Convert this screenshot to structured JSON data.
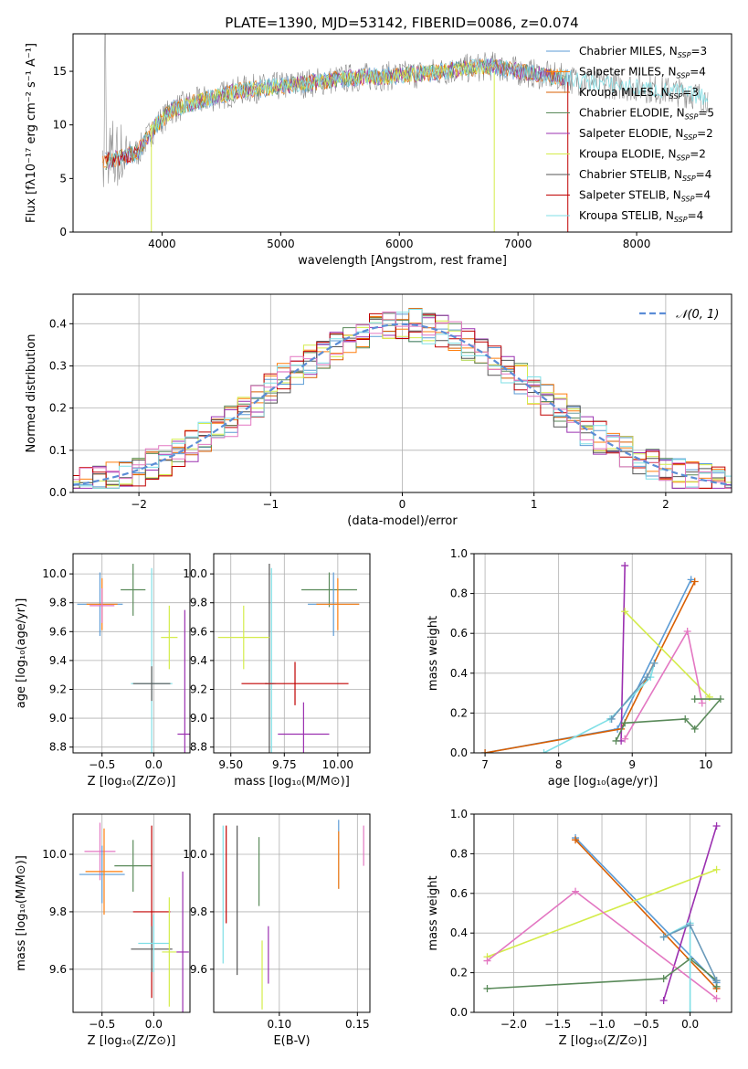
{
  "figure_title": "PLATE=1390, MJD=53142, FIBERID=0086, z=0.074",
  "colors": {
    "Chabrier MILES": "#5b9bd5",
    "Salpeter MILES": "#ff7f0e",
    "Kroupa MILES": "#d95f02",
    "Chabrier ELODIE": "#5a8a5a",
    "Salpeter ELODIE": "#9b30b0",
    "Kroupa ELODIE": "#d4ec4a",
    "Chabrier STELIB": "#555555",
    "Salpeter STELIB": "#c00000",
    "Kroupa STELIB": "#7fdfe6",
    "Extra pink": "#e377c2"
  },
  "chart_data": [
    {
      "id": "spectrum",
      "type": "line",
      "title": "PLATE=1390, MJD=53142, FIBERID=0086, z=0.074",
      "xlabel": "wavelength [Angstrom, rest frame]",
      "ylabel": "Flux [fλ10⁻¹⁷ erg cm⁻² s⁻¹ A⁻¹]",
      "xlim": [
        3250,
        8800
      ],
      "ylim": [
        0,
        18.5
      ],
      "xticks": [
        4000,
        5000,
        6000,
        7000,
        8000
      ],
      "yticks": [
        0,
        5,
        10,
        15
      ],
      "grid": false,
      "legend_position": "right",
      "legend": [
        {
          "label": "Chabrier MILES, N",
          "sub": "SSP",
          "suffix": "=3",
          "color": "#5b9bd5"
        },
        {
          "label": "Salpeter MILES, N",
          "sub": "SSP",
          "suffix": "=4",
          "color": "#ff7f0e"
        },
        {
          "label": "Kroupa MILES, N",
          "sub": "SSP",
          "suffix": "=3",
          "color": "#d95f02"
        },
        {
          "label": "Chabrier ELODIE, N",
          "sub": "SSP",
          "suffix": "=5",
          "color": "#5a8a5a"
        },
        {
          "label": "Salpeter ELODIE, N",
          "sub": "SSP",
          "suffix": "=2",
          "color": "#9b30b0"
        },
        {
          "label": "Kroupa ELODIE, N",
          "sub": "SSP",
          "suffix": "=2",
          "color": "#d4ec4a"
        },
        {
          "label": "Chabrier STELIB, N",
          "sub": "SSP",
          "suffix": "=4",
          "color": "#555555"
        },
        {
          "label": "Salpeter STELIB, N",
          "sub": "SSP",
          "suffix": "=4",
          "color": "#c00000"
        },
        {
          "label": "Kroupa STELIB, N",
          "sub": "SSP",
          "suffix": "=4",
          "color": "#7fdfe6"
        }
      ],
      "continuum_anchors": {
        "x": [
          3500,
          3800,
          3950,
          4100,
          4400,
          4700,
          5000,
          5300,
          5600,
          6000,
          6300,
          6600,
          6800,
          7000,
          7300,
          7600,
          8000,
          8400,
          8600
        ],
        "y": [
          6.5,
          7.5,
          10.0,
          11.5,
          12.5,
          13.3,
          13.6,
          14.0,
          14.4,
          14.6,
          14.9,
          15.3,
          15.5,
          15.0,
          14.5,
          14.0,
          13.5,
          13.0,
          12.5
        ]
      }
    },
    {
      "id": "residuals",
      "type": "histogram",
      "xlabel": "(data-model)/error",
      "ylabel": "Normed distribution",
      "xlim": [
        -2.5,
        2.5
      ],
      "ylim": [
        0,
        0.47
      ],
      "xticks": [
        -2,
        -1,
        0,
        1,
        2
      ],
      "yticks": [
        0.0,
        0.1,
        0.2,
        0.3,
        0.4
      ],
      "grid": true,
      "legend_position": "top-right",
      "reference_label": "𝒩(0, 1)",
      "reference_color": "#5b8dd6",
      "bin_width": 0.1
    },
    {
      "id": "z_age",
      "type": "errorbar",
      "xlabel": "Z [log₁₀(Z/Z⊙)]",
      "ylabel": "age  [log₁₀(age/yr)]",
      "xlim": [
        -0.78,
        0.35
      ],
      "ylim": [
        8.76,
        10.14
      ],
      "xticks": [
        -0.5,
        0.0
      ],
      "yticks": [
        8.8,
        9.0,
        9.2,
        9.4,
        9.6,
        9.8,
        10.0
      ],
      "grid": true,
      "points": [
        {
          "x": -0.52,
          "y": 9.79,
          "xerr": 0.22,
          "yerr": 0.22,
          "color": "#5b9bd5"
        },
        {
          "x": -0.5,
          "y": 9.79,
          "xerr": 0.15,
          "yerr": 0.18,
          "color": "#ff7f0e"
        },
        {
          "x": -0.5,
          "y": 9.78,
          "xerr": 0.12,
          "yerr": 0.12,
          "color": "#e377c2"
        },
        {
          "x": -0.2,
          "y": 9.89,
          "xerr": 0.12,
          "yerr": 0.18,
          "color": "#5a8a5a"
        },
        {
          "x": -0.02,
          "y": 9.24,
          "xerr": 0.2,
          "yerr": 0.8,
          "color": "#7fdfe6"
        },
        {
          "x": -0.02,
          "y": 9.24,
          "xerr": 0.18,
          "yerr": 0.12,
          "color": "#555555"
        },
        {
          "x": 0.15,
          "y": 9.56,
          "xerr": 0.08,
          "yerr": 0.22,
          "color": "#d4ec4a"
        },
        {
          "x": 0.3,
          "y": 8.89,
          "xerr": 0.07,
          "yerr": 0.86,
          "color": "#9b30b0"
        }
      ]
    },
    {
      "id": "mass_age",
      "type": "errorbar",
      "xlabel": "mass [log₁₀(M/M⊙)]",
      "ylabel": "",
      "xlim": [
        9.42,
        10.15
      ],
      "ylim": [
        8.76,
        10.14
      ],
      "xticks": [
        9.5,
        9.75,
        10.0
      ],
      "yticks": [
        8.8,
        9.0,
        9.2,
        9.4,
        9.6,
        9.8,
        10.0
      ],
      "grid": true,
      "points": [
        {
          "x": 9.68,
          "y": 9.24,
          "xerr": 0.02,
          "yerr": 0.83,
          "color": "#555555"
        },
        {
          "x": 9.69,
          "y": 9.24,
          "xerr": 0.02,
          "yerr": 0.8,
          "color": "#7fdfe6"
        },
        {
          "x": 9.56,
          "y": 9.56,
          "xerr": 0.12,
          "yerr": 0.22,
          "color": "#d4ec4a"
        },
        {
          "x": 9.8,
          "y": 9.24,
          "xerr": 0.25,
          "yerr": 0.15,
          "color": "#c00000"
        },
        {
          "x": 9.96,
          "y": 9.89,
          "xerr": 0.13,
          "yerr": 0.12,
          "color": "#5a8a5a"
        },
        {
          "x": 9.98,
          "y": 9.79,
          "xerr": 0.12,
          "yerr": 0.22,
          "color": "#5b9bd5"
        },
        {
          "x": 10.0,
          "y": 9.79,
          "xerr": 0.1,
          "yerr": 0.18,
          "color": "#ff7f0e"
        },
        {
          "x": 9.84,
          "y": 8.89,
          "xerr": 0.12,
          "yerr": 0.22,
          "color": "#9b30b0"
        }
      ]
    },
    {
      "id": "age_weight",
      "type": "line",
      "xlabel": "age  [log₁₀(age/yr)]",
      "ylabel": "mass weight",
      "xlim": [
        6.85,
        10.35
      ],
      "ylim": [
        0,
        1.0
      ],
      "xticks": [
        7,
        8,
        9,
        10
      ],
      "yticks": [
        0.0,
        0.2,
        0.4,
        0.6,
        0.8,
        1.0
      ],
      "grid": true,
      "series": [
        {
          "color": "#5b9bd5",
          "x": [
            7.0,
            8.8,
            9.8
          ],
          "y": [
            0.0,
            0.12,
            0.87
          ]
        },
        {
          "color": "#d95f02",
          "x": [
            7.0,
            8.85,
            9.85
          ],
          "y": [
            0.0,
            0.12,
            0.86
          ]
        },
        {
          "color": "#9b30b0",
          "x": [
            8.85,
            8.9
          ],
          "y": [
            0.06,
            0.94
          ]
        },
        {
          "color": "#d4ec4a",
          "x": [
            8.9,
            10.05
          ],
          "y": [
            0.71,
            0.28
          ]
        },
        {
          "color": "#e377c2",
          "x": [
            8.9,
            9.75,
            9.95
          ],
          "y": [
            0.07,
            0.61,
            0.25
          ]
        },
        {
          "color": "#5a8a5a",
          "x": [
            8.78,
            8.9,
            9.72,
            9.85,
            10.2,
            9.85
          ],
          "y": [
            0.06,
            0.15,
            0.17,
            0.12,
            0.27,
            0.27
          ]
        },
        {
          "color": "#7fdfe6",
          "x": [
            7.8,
            8.7,
            9.25,
            9.3
          ],
          "y": [
            0.0,
            0.17,
            0.38,
            0.45
          ]
        },
        {
          "color": "#6a9aba",
          "x": [
            8.72,
            9.2,
            9.3
          ],
          "y": [
            0.17,
            0.38,
            0.45
          ]
        }
      ]
    },
    {
      "id": "z_mass",
      "type": "errorbar",
      "xlabel": "Z [log₁₀(Z/Z⊙)]",
      "ylabel": "mass [log₁₀(M/M⊙)]",
      "xlim": [
        -0.78,
        0.35
      ],
      "ylim": [
        9.45,
        10.14
      ],
      "xticks": [
        -0.5,
        0.0
      ],
      "yticks": [
        9.6,
        9.8,
        10.0
      ],
      "grid": true,
      "points": [
        {
          "x": -0.52,
          "y": 10.01,
          "xerr": 0.15,
          "yerr": 0.1,
          "color": "#e377c2"
        },
        {
          "x": -0.5,
          "y": 9.93,
          "xerr": 0.22,
          "yerr": 0.1,
          "color": "#5b9bd5"
        },
        {
          "x": -0.48,
          "y": 9.94,
          "xerr": 0.18,
          "yerr": 0.15,
          "color": "#ff7f0e"
        },
        {
          "x": -0.2,
          "y": 9.96,
          "xerr": 0.18,
          "yerr": 0.09,
          "color": "#5a8a5a"
        },
        {
          "x": -0.02,
          "y": 9.8,
          "xerr": 0.18,
          "yerr": 0.3,
          "color": "#c00000"
        },
        {
          "x": -0.02,
          "y": 9.67,
          "xerr": 0.2,
          "yerr": 0.08,
          "color": "#555555"
        },
        {
          "x": 0.0,
          "y": 9.69,
          "xerr": 0.15,
          "yerr": 0.1,
          "color": "#7fdfe6"
        },
        {
          "x": 0.15,
          "y": 9.66,
          "xerr": 0.07,
          "yerr": 0.19,
          "color": "#d4ec4a"
        },
        {
          "x": 0.28,
          "y": 9.66,
          "xerr": 0.06,
          "yerr": 0.28,
          "color": "#9b30b0"
        }
      ]
    },
    {
      "id": "ebv_mass",
      "type": "errorbar",
      "xlabel": "E(B-V)",
      "ylabel": "",
      "xlim": [
        0.058,
        0.158
      ],
      "ylim": [
        9.45,
        10.14
      ],
      "xticks": [
        0.1,
        0.15
      ],
      "yticks": [
        9.6,
        9.8,
        10.0
      ],
      "grid": true,
      "points": [
        {
          "x": 0.064,
          "y": 9.86,
          "xerr": 0,
          "yerr": 0.24,
          "color": "#7fdfe6"
        },
        {
          "x": 0.066,
          "y": 9.93,
          "xerr": 0,
          "yerr": 0.17,
          "color": "#c00000"
        },
        {
          "x": 0.073,
          "y": 9.84,
          "xerr": 0,
          "yerr": 0.26,
          "color": "#555555"
        },
        {
          "x": 0.089,
          "y": 9.58,
          "xerr": 0,
          "yerr": 0.12,
          "color": "#d4ec4a"
        },
        {
          "x": 0.093,
          "y": 9.65,
          "xerr": 0,
          "yerr": 0.1,
          "color": "#9b30b0"
        },
        {
          "x": 0.087,
          "y": 9.94,
          "xerr": 0,
          "yerr": 0.12,
          "color": "#5a8a5a"
        },
        {
          "x": 0.138,
          "y": 10.0,
          "xerr": 0,
          "yerr": 0.12,
          "color": "#5b9bd5"
        },
        {
          "x": 0.138,
          "y": 9.98,
          "xerr": 0,
          "yerr": 0.1,
          "color": "#ff7f0e"
        },
        {
          "x": 0.154,
          "y": 10.03,
          "xerr": 0,
          "yerr": 0.07,
          "color": "#e377c2"
        }
      ]
    },
    {
      "id": "z_weight",
      "type": "line",
      "xlabel": "Z [log₁₀(Z/Z⊙)]",
      "ylabel": "mass weight",
      "xlim": [
        -2.45,
        0.47
      ],
      "ylim": [
        0,
        1.0
      ],
      "xticks": [
        -2.0,
        -1.5,
        -1.0,
        -0.5,
        0.0
      ],
      "yticks": [
        0.0,
        0.2,
        0.4,
        0.6,
        0.8,
        1.0
      ],
      "grid": true,
      "series": [
        {
          "color": "#5b9bd5",
          "x": [
            -1.3,
            0.3
          ],
          "y": [
            0.88,
            0.15
          ]
        },
        {
          "color": "#d95f02",
          "x": [
            -1.3,
            0.3
          ],
          "y": [
            0.87,
            0.12
          ]
        },
        {
          "color": "#9b30b0",
          "x": [
            -0.3,
            0.3
          ],
          "y": [
            0.06,
            0.94
          ]
        },
        {
          "color": "#d4ec4a",
          "x": [
            -2.3,
            0.3
          ],
          "y": [
            0.28,
            0.72
          ]
        },
        {
          "color": "#e377c2",
          "x": [
            -2.3,
            -1.3,
            0.3
          ],
          "y": [
            0.26,
            0.61,
            0.07
          ]
        },
        {
          "color": "#5a8a5a",
          "x": [
            -2.3,
            -0.3,
            0.0,
            0.3,
            0.3
          ],
          "y": [
            0.12,
            0.17,
            0.27,
            0.16,
            0.13
          ]
        },
        {
          "color": "#7fdfe6",
          "x": [
            -0.3,
            0.0,
            0.0
          ],
          "y": [
            0.38,
            0.45,
            0.0
          ]
        },
        {
          "color": "#6a9aba",
          "x": [
            -0.3,
            0.0,
            0.3
          ],
          "y": [
            0.38,
            0.44,
            0.16
          ]
        }
      ]
    }
  ]
}
